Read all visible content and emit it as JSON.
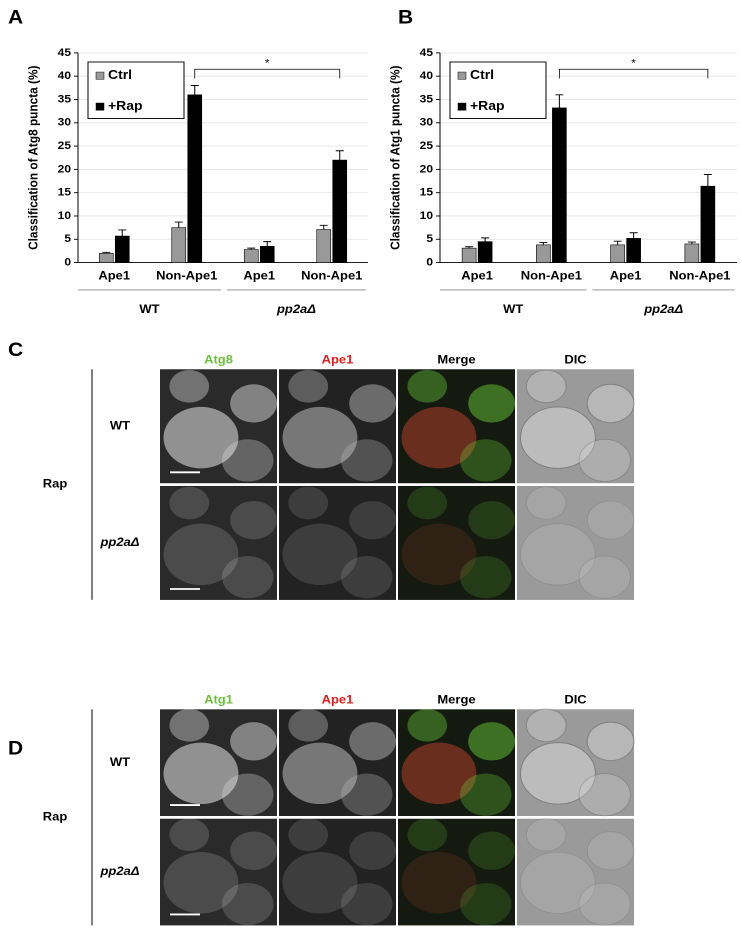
{
  "chart_data": [
    {
      "type": "bar",
      "label": "A",
      "ylabel": "Classification of Atg8 puncta (%)",
      "categories": [
        "Ape1",
        "Non-Ape1",
        "Ape1",
        "Non-Ape1"
      ],
      "groups": [
        "WT",
        "pp2aΔ"
      ],
      "series": [
        {
          "name": "Ctrl",
          "color": "#999999",
          "values": [
            2.0,
            7.5,
            2.8,
            7.1
          ],
          "errors": [
            0.2,
            1.2,
            0.3,
            0.9
          ]
        },
        {
          "name": "+Rap",
          "color": "#000000",
          "values": [
            5.7,
            36.0,
            3.5,
            22.0
          ],
          "errors": [
            1.3,
            2.0,
            1.0,
            2.0
          ]
        }
      ],
      "annotation": "*",
      "ylim": [
        0,
        45
      ],
      "yticks": [
        0,
        5,
        10,
        15,
        20,
        25,
        30,
        35,
        40,
        45
      ],
      "grid": true,
      "legend": "top-left"
    },
    {
      "type": "bar",
      "label": "B",
      "ylabel": "Classification of Atg1 puncta (%)",
      "categories": [
        "Ape1",
        "Non-Ape1",
        "Ape1",
        "Non-Ape1"
      ],
      "groups": [
        "WT",
        "pp2aΔ"
      ],
      "series": [
        {
          "name": "Ctrl",
          "color": "#999999",
          "values": [
            3.1,
            3.8,
            3.8,
            4.0
          ],
          "errors": [
            0.3,
            0.5,
            0.8,
            0.4
          ]
        },
        {
          "name": "+Rap",
          "color": "#000000",
          "values": [
            4.5,
            33.2,
            5.2,
            16.4
          ],
          "errors": [
            0.8,
            2.8,
            1.2,
            2.5
          ]
        }
      ],
      "annotation": "*",
      "ylim": [
        0,
        45
      ],
      "yticks": [
        0,
        5,
        10,
        15,
        20,
        25,
        30,
        35,
        40,
        45
      ],
      "grid": true,
      "legend": "top-left"
    }
  ],
  "panels": [
    {
      "label": "C",
      "columns": [
        "Atg8",
        "Ape1",
        "Merge",
        "DIC"
      ],
      "rows": [
        "WT",
        "pp2aΔ"
      ],
      "condition": "Rap"
    },
    {
      "label": "D",
      "columns": [
        "Atg1",
        "Ape1",
        "Merge",
        "DIC"
      ],
      "rows": [
        "WT",
        "pp2aΔ"
      ],
      "condition": "Rap"
    }
  ]
}
